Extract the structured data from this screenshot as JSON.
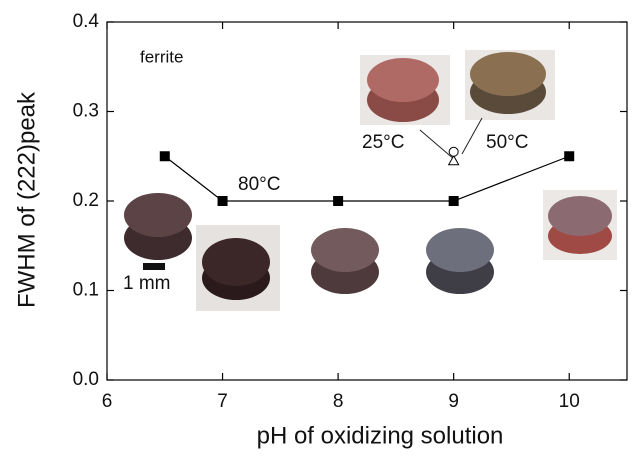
{
  "chart_data": {
    "type": "line",
    "x_label": "pH of oxidizing solution",
    "y_label": "FWHM of (222)peak",
    "xlim": [
      6,
      10.5
    ],
    "xticks": [
      6,
      7,
      8,
      9,
      10
    ],
    "ylim": [
      0,
      0.4
    ],
    "yticks": [
      {
        "value": 0,
        "label": "0.0"
      },
      0.1,
      0.2,
      0.3,
      0.4
    ],
    "series": [
      {
        "x": [
          6.5,
          7,
          8,
          9,
          10
        ],
        "values": [
          0.25,
          0.2,
          0.2,
          0.2,
          0.25
        ],
        "marker": "square",
        "color": "#000000"
      },
      {
        "x": [
          9
        ],
        "values": [
          0.245
        ],
        "marker": "triangle",
        "color": "#000000"
      },
      {
        "x": [
          9
        ],
        "values": [
          0.255
        ],
        "marker": "circle",
        "color": "#000000"
      }
    ],
    "annotations": [
      "ferrite",
      "80°C",
      "25°C",
      "50°C",
      "1 mm"
    ]
  }
}
